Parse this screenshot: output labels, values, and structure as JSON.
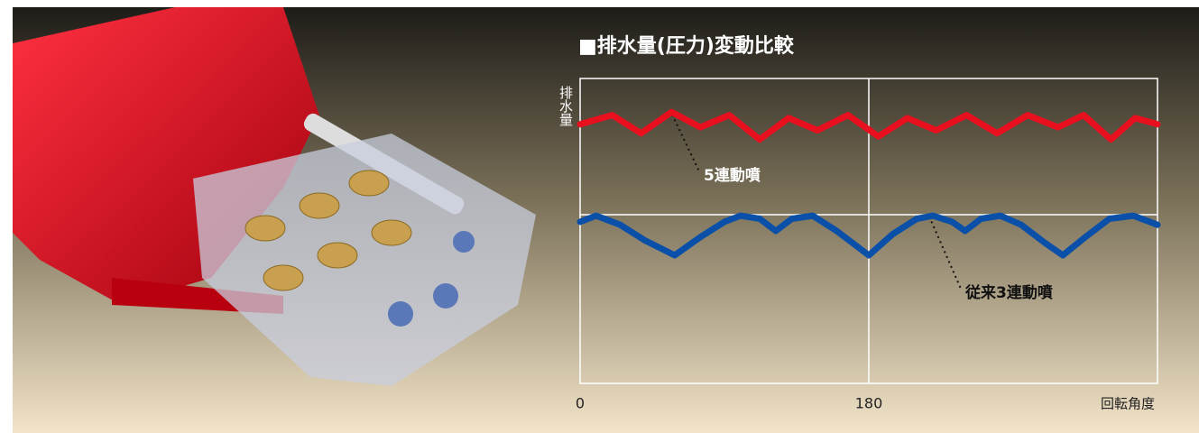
{
  "chart_data": {
    "type": "line",
    "title": "■排水量(圧力)変動比較",
    "y_label": "排水量",
    "x_label": "回転角度",
    "xlim": [
      0,
      360
    ],
    "xticks": [
      0,
      180
    ],
    "ylim": [
      0,
      100
    ],
    "grid": true,
    "series": [
      {
        "name": "5連動噴",
        "color": "#e8101e",
        "x": [
          0,
          20,
          38,
          57,
          75,
          93,
          112,
          130,
          148,
          167,
          186,
          204,
          222,
          241,
          260,
          279,
          298,
          314,
          331,
          346,
          360
        ],
        "values": [
          85,
          88,
          82,
          89,
          84,
          88,
          80,
          87,
          83,
          88,
          81,
          87,
          83,
          88,
          82,
          88,
          84,
          88,
          80,
          87,
          85
        ]
      },
      {
        "name": "従来3連動噴",
        "color": "#0a4fa8",
        "x": [
          0,
          10,
          25,
          40,
          59,
          75,
          90,
          100,
          112,
          122,
          132,
          145,
          160,
          180,
          195,
          210,
          220,
          232,
          240,
          250,
          262,
          275,
          290,
          301,
          315,
          330,
          345,
          360
        ],
        "values": [
          53,
          55,
          52,
          47,
          42,
          48,
          53,
          55,
          54,
          50,
          54,
          55,
          50,
          42,
          49,
          54,
          55,
          53,
          50,
          54,
          55,
          52,
          46,
          42,
          48,
          54,
          55,
          52
        ]
      }
    ]
  }
}
